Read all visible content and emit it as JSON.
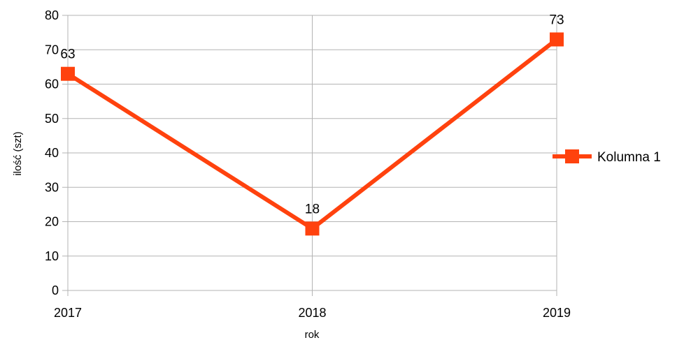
{
  "chart_data": {
    "type": "line",
    "title": "",
    "xlabel": "rok",
    "ylabel": "ilość (szt)",
    "categories": [
      "2017",
      "2018",
      "2019"
    ],
    "series": [
      {
        "name": "Kolumna 1",
        "values": [
          63,
          18,
          73
        ],
        "color": "#ff420e"
      }
    ],
    "ylim": [
      0,
      80
    ],
    "yticks": [
      0,
      10,
      20,
      30,
      40,
      50,
      60,
      70,
      80
    ],
    "grid": true,
    "legend_position": "right",
    "data_labels": true,
    "marker": "square"
  }
}
